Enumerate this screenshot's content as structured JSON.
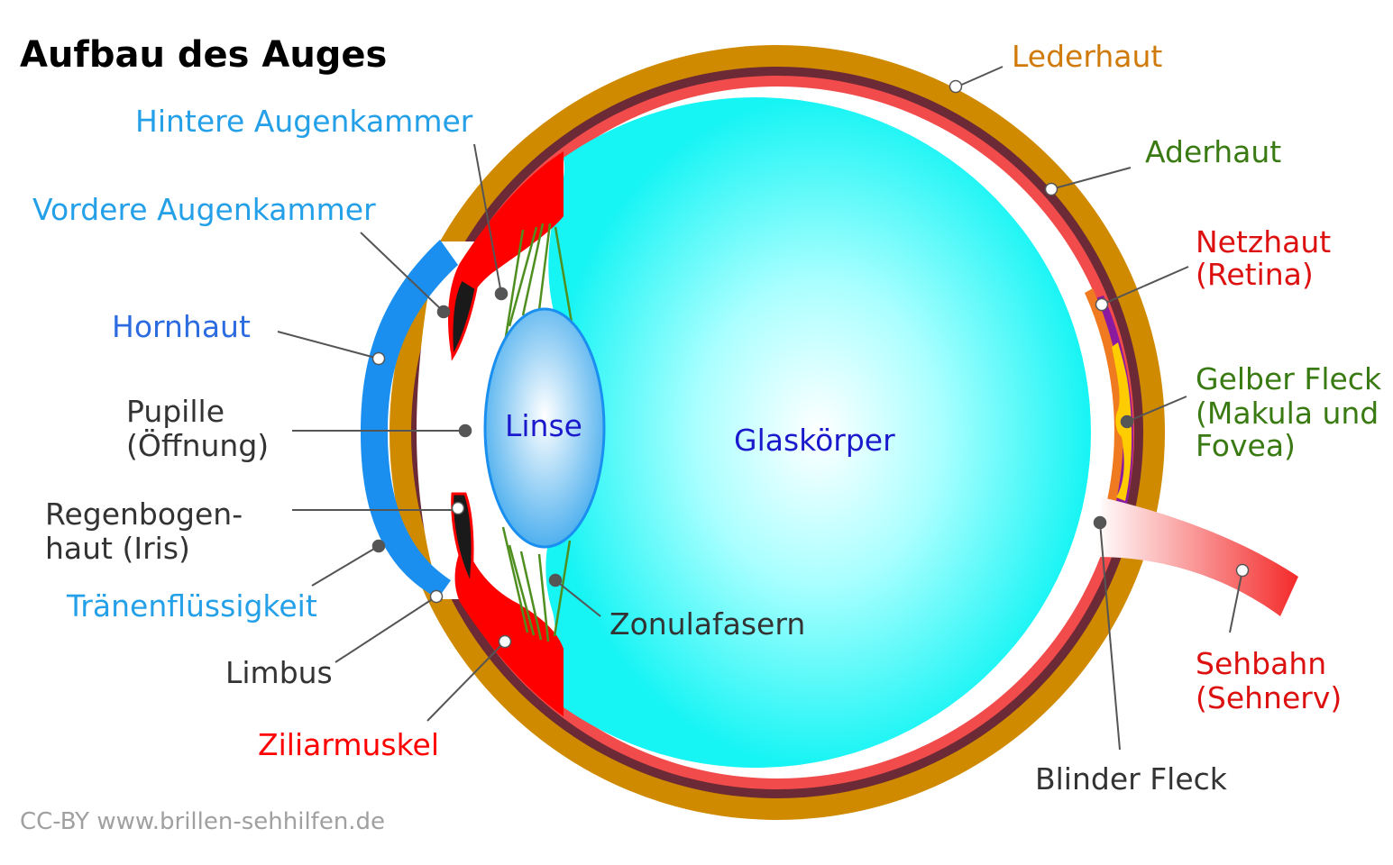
{
  "title": "Aufbau des Auges",
  "credit": "CC-BY www.brillen-sehhilfen.de",
  "colors": {
    "sclera": "#d08a00",
    "choroid": "#6b2a35",
    "retina": "#f24b4b",
    "vitreous": "#16f4f4",
    "cornea": "#1a8ff0",
    "ciliary": "#ff0000",
    "zonula": "#4f8f1f",
    "macula": "#ffcc00",
    "label_orange": "#d07a0a",
    "label_green": "#3a7a12",
    "label_red": "#dd1010",
    "label_lightblue": "#23a0e8",
    "label_blue": "#2d6be0",
    "label_darkblue": "#1a1acc",
    "label_gray": "#333333"
  },
  "labels": {
    "lederhaut": "Lederhaut",
    "aderhaut": "Aderhaut",
    "netzhaut_1": "Netzhaut",
    "netzhaut_2": "(Retina)",
    "gelber_fleck_1": "Gelber Fleck",
    "gelber_fleck_2": "(Makula und",
    "gelber_fleck_3": "Fovea)",
    "sehbahn_1": "Sehbahn",
    "sehbahn_2": "(Sehnerv)",
    "blinder_fleck": "Blinder Fleck",
    "hintere_augenkammer": "Hintere Augenkammer",
    "vordere_augenkammer": "Vordere Augenkammer",
    "hornhaut": "Hornhaut",
    "pupille_1": "Pupille",
    "pupille_2": "(Öffnung)",
    "regenbogenhaut_1": "Regenbogen-",
    "regenbogenhaut_2": "haut  (Iris)",
    "traenenfluessigkeit": "Tränenflüssigkeit",
    "limbus": "Limbus",
    "ziliarmuskel": "Ziliarmuskel",
    "zonulafasern": "Zonulafasern",
    "linse": "Linse",
    "glaskoerper": "Glaskörper"
  }
}
